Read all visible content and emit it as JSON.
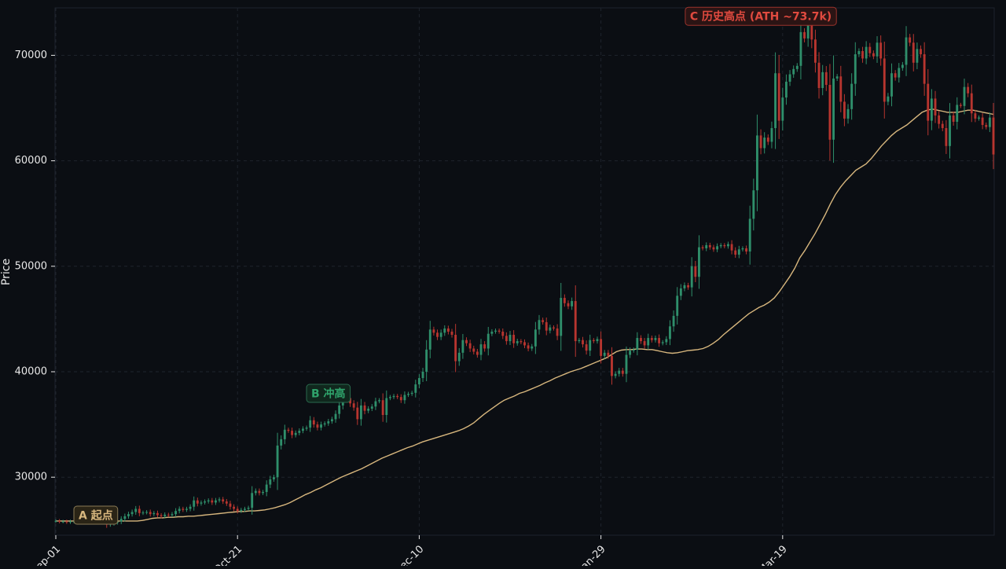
{
  "chart_data": {
    "type": "candlestick",
    "title": "",
    "xlabel": "",
    "ylabel": "Price",
    "ylim": [
      24500,
      74500
    ],
    "y_ticks": [
      30000,
      40000,
      50000,
      60000,
      70000
    ],
    "x_tick_labels": [
      "Sep-01",
      "Oct-21",
      "Dec-10",
      "Jan-29",
      "Mar-19"
    ],
    "x_tick_positions": [
      0,
      50,
      100,
      150,
      200
    ],
    "grid": true,
    "colors": {
      "background": "#0b0e13",
      "plot_background": "#0b0e13",
      "up": "#2f8f6b",
      "down": "#b8352f",
      "ma_line": "#d8b77e",
      "grid": "#232833",
      "axis_text": "#e8e8e8"
    },
    "series": [
      {
        "type": "candlestick",
        "close": [
          25850,
          25800,
          25800,
          25750,
          25800,
          25820,
          25780,
          25850,
          26100,
          25950,
          26000,
          25900,
          25950,
          25900,
          25500,
          25600,
          25700,
          25800,
          26050,
          26300,
          26500,
          26700,
          27000,
          26600,
          26650,
          26700,
          26500,
          26600,
          26400,
          26300,
          26450,
          26400,
          26500,
          26800,
          27000,
          26900,
          27000,
          27200,
          27800,
          27500,
          27600,
          27700,
          27800,
          27600,
          27800,
          27900,
          27700,
          27500,
          27200,
          27000,
          26800,
          26900,
          27000,
          27100,
          28500,
          28700,
          28500,
          28600,
          29300,
          29800,
          30000,
          33000,
          33600,
          34500,
          34400,
          34000,
          34200,
          34400,
          34600,
          34700,
          35400,
          35000,
          34700,
          35000,
          35100,
          35300,
          35500,
          36000,
          36800,
          37400,
          37500,
          37000,
          36600,
          35500,
          36800,
          36300,
          36500,
          36700,
          37200,
          37300,
          35900,
          37500,
          37600,
          37700,
          37600,
          37300,
          37800,
          37900,
          38000,
          38800,
          39400,
          40000,
          42100,
          44000,
          43700,
          43300,
          43700,
          44100,
          43800,
          43500,
          41000,
          41800,
          43000,
          42700,
          42200,
          41900,
          41600,
          42600,
          42200,
          43600,
          43800,
          43900,
          43800,
          43400,
          42900,
          43500,
          42700,
          42900,
          42800,
          42500,
          42200,
          42400,
          44000,
          44900,
          44700,
          43900,
          44200,
          44100,
          43400,
          47000,
          46500,
          46200,
          46700,
          42900,
          43000,
          42600,
          42000,
          43000,
          42900,
          43100,
          41500,
          41800,
          41500,
          39600,
          39800,
          40100,
          39800,
          41600,
          42000,
          42100,
          43200,
          42900,
          42500,
          43200,
          43000,
          43200,
          42700,
          42800,
          43100,
          44300,
          45300,
          47200,
          47900,
          48200,
          48000,
          50000,
          49000,
          51800,
          51700,
          52000,
          51800,
          51600,
          51900,
          52000,
          51900,
          52100,
          51500,
          51100,
          51600,
          51700,
          51400,
          54500,
          57200,
          62400,
          61200,
          62200,
          61800,
          63100,
          68300,
          63800,
          66000,
          67500,
          68200,
          68700,
          69000,
          72200,
          71600,
          73400,
          71500,
          69300,
          66900,
          68400,
          67200,
          62000,
          67800,
          68000,
          65600,
          64000,
          64900,
          67300,
          70100,
          70400,
          69700,
          70800,
          70200,
          69900,
          71200,
          69700,
          65600,
          66100,
          68300,
          67900,
          68800,
          69100,
          71700,
          71200,
          69300,
          70600,
          70100,
          67300,
          63800,
          65900,
          64300,
          63500,
          63100,
          61400,
          64300,
          63700,
          65300,
          65200,
          67000,
          66400,
          64500,
          64000,
          64100,
          63400,
          63200,
          64100,
          60600
        ],
        "ma_line": [
          25850,
          25850,
          25850,
          25850,
          25850,
          25850,
          25850,
          25850,
          25850,
          25850,
          25850,
          25850,
          25850,
          25850,
          25850,
          25850,
          25850,
          25900,
          26000,
          26100,
          26150,
          26150,
          26200,
          26200,
          26250,
          26250,
          26300,
          26300,
          26350,
          26400,
          26450,
          26500,
          26550,
          26600,
          26650,
          26700,
          26750,
          26750,
          26800,
          26800,
          26850,
          26900,
          27000,
          27100,
          27250,
          27400,
          27600,
          27850,
          28100,
          28350,
          28550,
          28800,
          29000,
          29250,
          29500,
          29750,
          30000,
          30200,
          30400,
          30600,
          30800,
          31050,
          31300,
          31550,
          31800,
          32000,
          32200,
          32400,
          32600,
          32800,
          32950,
          33150,
          33350,
          33500,
          33650,
          33800,
          33950,
          34100,
          34250,
          34400,
          34600,
          34850,
          35150,
          35550,
          35950,
          36300,
          36650,
          37000,
          37300,
          37500,
          37700,
          37950,
          38100,
          38300,
          38500,
          38700,
          38950,
          39150,
          39400,
          39600,
          39800,
          40000,
          40150,
          40300,
          40500,
          40700,
          40900,
          41100,
          41300,
          41600,
          41900,
          42050,
          42100,
          42100,
          42150,
          42150,
          42100,
          42100,
          42000,
          41900,
          41800,
          41750,
          41800,
          41900,
          42000,
          42050,
          42100,
          42200,
          42400,
          42700,
          43050,
          43500,
          43900,
          44300,
          44700,
          45100,
          45500,
          45800,
          46100,
          46300,
          46600,
          47000,
          47600,
          48300,
          49000,
          49800,
          50800,
          51500,
          52300,
          53100,
          54000,
          54900,
          55900,
          56800,
          57500,
          58100,
          58600,
          59100,
          59400,
          59700,
          60200,
          60800,
          61400,
          61900,
          62400,
          62800,
          63100,
          63400,
          63800,
          64200,
          64600,
          64800,
          64900,
          64800,
          64700,
          64600,
          64600,
          64600,
          64700,
          64800,
          64800,
          64700,
          64600,
          64500,
          64400
        ]
      }
    ],
    "annotations": [
      {
        "label": "A 起点",
        "x": 11,
        "y": 26400,
        "color": "#d8b77e",
        "fill": "#2a2416",
        "border": "#8a7a55"
      },
      {
        "label": "B 冲高",
        "x": 75,
        "y": 37950,
        "color": "#2fa36b",
        "fill": "#10271d",
        "border": "#2a6b4e"
      },
      {
        "label": "C 历史高点 (ATH ~73.7k)",
        "x": 194,
        "y": 73700,
        "color": "#e04a3f",
        "fill": "#2b1414",
        "border": "#9b332c"
      }
    ]
  }
}
